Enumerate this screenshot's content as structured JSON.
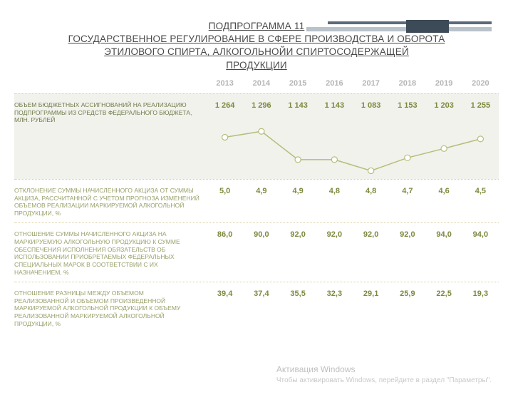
{
  "title": {
    "line1": "ПОДПРОГРАММА 11",
    "line2": "ГОСУДАРСТВЕННОЕ РЕГУЛИРОВАНИЕ В СФЕРЕ ПРОИЗВОДСТВА И ОБОРОТА",
    "line3": "ЭТИЛОВОГО СПИРТА, АЛКОГОЛЬНОЙИ СПИРТОСОДЕРЖАЩЕЙ",
    "line4": "ПРОДУКЦИИ"
  },
  "years": [
    "2013",
    "2014",
    "2015",
    "2016",
    "2017",
    "2018",
    "2019",
    "2020"
  ],
  "rows": [
    {
      "label": "ОБЪЕМ БЮДЖЕТНЫХ АССИГНОВАНИЙ НА РЕАЛИЗАЦИЮ ПОДПРОГРАММЫ ИЗ СРЕДСТВ ФЕДЕРАЛЬНОГО БЮДЖЕТА, МЛН. РУБЛЕЙ",
      "values": [
        "1 264",
        "1 296",
        "1 143",
        "1 143",
        "1 083",
        "1 153",
        "1 203",
        "1 255"
      ],
      "numeric": [
        1264,
        1296,
        1143,
        1143,
        1083,
        1153,
        1203,
        1255
      ],
      "has_chart": true
    },
    {
      "label": "ОТКЛОНЕНИЕ СУММЫ НАЧИСЛЕННОГО АКЦИЗА ОТ СУММЫ АКЦИЗА, РАССЧИТАННОЙ С УЧЕТОМ ПРОГНОЗА ИЗМЕНЕНИЙ ОБЪЕМОВ РЕАЛИЗАЦИИ МАРКИРУЕМОЙ АЛКОГОЛЬНОЙ ПРОДУКЦИИ, %",
      "values": [
        "5,0",
        "4,9",
        "4,9",
        "4,8",
        "4,8",
        "4,7",
        "4,6",
        "4,5"
      ]
    },
    {
      "label": "ОТНОШЕНИЕ СУММЫ НАЧИСЛЕННОГО АКЦИЗА НА МАРКИРУЕМУЮ АЛКОГОЛЬНУЮ ПРОДУКЦИЮ К СУММЕ ОБЕСПЕЧЕНИЯ ИСПОЛНЕНИЯ ОБЯЗАТЕЛЬСТВ ОБ ИСПОЛЬЗОВАНИИ ПРИОБРЕТАЕМЫХ ФЕДЕРАЛЬНЫХ СПЕЦИАЛЬНЫХ МАРОК В СООТВЕТСТВИИ С ИХ НАЗНАЧЕНИЕМ, %",
      "values": [
        "86,0",
        "90,0",
        "92,0",
        "92,0",
        "92,0",
        "92,0",
        "94,0",
        "94,0"
      ]
    },
    {
      "label": "ОТНОШЕНИЕ РАЗНИЦЫ МЕЖДУ ОБЪЕМОМ РЕАЛИЗОВАННОЙ И ОБЪЕМОМ ПРОИЗВЕДЕННОЙ МАРКИРУЕМОЙ АЛКОГОЛЬНОЙ ПРОДУКЦИИ К ОБЪЕМУ РЕАЛИЗОВАННОЙ МАРКИРУЕМОЙ АЛКОГОЛЬНОЙ ПРОДУКЦИИ, %",
      "values": [
        "39,4",
        "37,4",
        "35,5",
        "32,3",
        "29,1",
        "25,9",
        "22,5",
        "19,3"
      ]
    }
  ],
  "chart_style": {
    "line_color": "#b7bd7a",
    "line_width": 1.5,
    "marker_fill": "#ffffff",
    "marker_stroke": "#b7bd7a",
    "marker_radius": 4,
    "ymin": 1050,
    "ymax": 1320
  },
  "colors": {
    "header_text": "#b5b5b5",
    "value_text": "#7c8a3f",
    "label_text": "#9aa06a",
    "row_highlight_bg": "#f1f2ec",
    "divider": "#d7cfa0",
    "title_text": "#4a4a4a"
  },
  "watermark": {
    "line1": "Активация Windows",
    "line2": "Чтобы активировать Windows, перейдите в раздел \"Параметры\"."
  }
}
